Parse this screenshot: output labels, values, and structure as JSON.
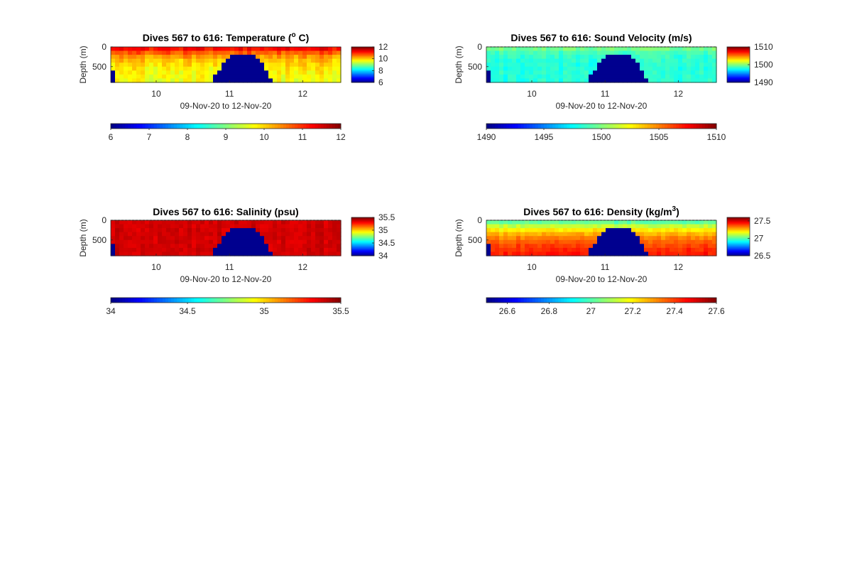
{
  "figure": {
    "background": "#ffffff",
    "colormap": "jet",
    "land_color": "#00008f"
  },
  "chart_data": [
    {
      "type": "heatmap",
      "title_prefix": "Dives 567 to 616: Temperature (",
      "title_sup": "o",
      "title_suffix": " C)",
      "xlabel": "09-Nov-20 to 12-Nov-20",
      "ylabel": "Depth (m)",
      "xlim": [
        9.38,
        12.52
      ],
      "ylim": [
        0,
        900
      ],
      "xticks": [
        10,
        11,
        12
      ],
      "xticklabels": [
        "10",
        "11",
        "12"
      ],
      "yticks": [
        0,
        500
      ],
      "yticklabels": [
        "0",
        "500"
      ],
      "mask": {
        "left": [
          9.38,
          9.45,
          550
        ],
        "dome": [
          10.76,
          11.59
        ],
        "dome_top": 150,
        "dome_side": 900
      },
      "surface_line": false,
      "field": {
        "surface": 11.6,
        "deep": 9.6,
        "mix": 260,
        "noise": 0.35
      },
      "clim": [
        6,
        12
      ],
      "colorbar_side": {
        "ticks": [
          12,
          10,
          8,
          6
        ],
        "labels": [
          "12",
          "10",
          "8",
          "6"
        ]
      },
      "colorbar_bottom": {
        "ticks": [
          6,
          7,
          8,
          9,
          10,
          11,
          12
        ],
        "labels": [
          "6",
          "7",
          "8",
          "9",
          "10",
          "11",
          "12"
        ]
      }
    },
    {
      "type": "heatmap",
      "title_prefix": "Dives 567 to 616: Sound Velocity (m/s)",
      "title_sup": "",
      "title_suffix": "",
      "xlabel": "09-Nov-20 to 12-Nov-20",
      "ylabel": "Depth (m)",
      "xlim": [
        9.38,
        12.52
      ],
      "ylim": [
        0,
        900
      ],
      "xticks": [
        10,
        11,
        12
      ],
      "xticklabels": [
        "10",
        "11",
        "12"
      ],
      "yticks": [
        0,
        500
      ],
      "yticklabels": [
        "0",
        "500"
      ],
      "mask": {
        "left": [
          9.38,
          9.45,
          550
        ],
        "dome": [
          10.76,
          11.59
        ],
        "dome_top": 150,
        "dome_side": 900
      },
      "surface_line": true,
      "field": {
        "surface": 1500.5,
        "deep": 1498.2,
        "mix": 120,
        "noise": 0.8
      },
      "clim": [
        1490,
        1510
      ],
      "colorbar_side": {
        "ticks": [
          1510,
          1500,
          1490
        ],
        "labels": [
          "1510",
          "1500",
          "1490"
        ]
      },
      "colorbar_bottom": {
        "ticks": [
          1490,
          1495,
          1500,
          1505,
          1510
        ],
        "labels": [
          "1490",
          "1495",
          "1500",
          "1505",
          "1510"
        ]
      }
    },
    {
      "type": "heatmap",
      "title_prefix": "Dives 567 to 616: Salinity (psu)",
      "title_sup": "",
      "title_suffix": "",
      "xlabel": "09-Nov-20 to 12-Nov-20",
      "ylabel": "Depth (m)",
      "xlim": [
        9.38,
        12.52
      ],
      "ylim": [
        0,
        900
      ],
      "xticks": [
        10,
        11,
        12
      ],
      "xticklabels": [
        "10",
        "11",
        "12"
      ],
      "yticks": [
        0,
        500
      ],
      "yticklabels": [
        "0",
        "500"
      ],
      "mask": {
        "left": [
          9.38,
          9.45,
          550
        ],
        "dome": [
          10.76,
          11.59
        ],
        "dome_top": 150,
        "dome_side": 900
      },
      "surface_line": true,
      "field": {
        "surface": 35.38,
        "deep": 35.38,
        "mix": 300,
        "noise": 0.05
      },
      "clim": [
        34,
        35.5
      ],
      "colorbar_side": {
        "ticks": [
          35.5,
          35,
          34.5,
          34
        ],
        "labels": [
          "35.5",
          "35",
          "34.5",
          "34"
        ]
      },
      "colorbar_bottom": {
        "ticks": [
          34,
          34.5,
          35,
          35.5
        ],
        "labels": [
          "34",
          "34.5",
          "35",
          "35.5"
        ]
      }
    },
    {
      "type": "heatmap",
      "title_prefix": "Dives 567 to 616: Density (kg/m",
      "title_sup": "3",
      "title_suffix": ")",
      "xlabel": "09-Nov-20 to 12-Nov-20",
      "ylabel": "Depth (m)",
      "xlim": [
        9.38,
        12.52
      ],
      "ylim": [
        0,
        900
      ],
      "xticks": [
        10,
        11,
        12
      ],
      "xticklabels": [
        "10",
        "11",
        "12"
      ],
      "yticks": [
        0,
        500
      ],
      "yticklabels": [
        "0",
        "500"
      ],
      "mask": {
        "left": [
          9.38,
          9.45,
          550
        ],
        "dome": [
          10.76,
          11.59
        ],
        "dome_top": 150,
        "dome_side": 900
      },
      "surface_line": true,
      "field": {
        "surface": 26.95,
        "deep": 27.5,
        "mix": 400,
        "noise": 0.04
      },
      "clim": [
        26.5,
        27.6
      ],
      "colorbar_side": {
        "ticks": [
          27.5,
          27,
          26.5
        ],
        "labels": [
          "27.5",
          "27",
          "26.5"
        ]
      },
      "colorbar_bottom": {
        "ticks": [
          26.6,
          26.8,
          27,
          27.2,
          27.4,
          27.6
        ],
        "labels": [
          "26.6",
          "26.8",
          "27",
          "27.2",
          "27.4",
          "27.6"
        ]
      }
    }
  ]
}
